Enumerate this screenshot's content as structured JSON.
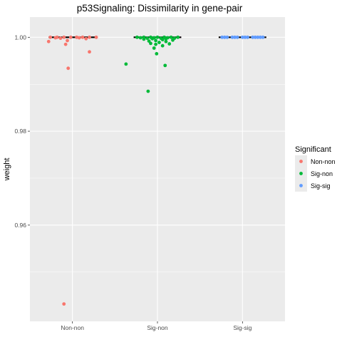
{
  "chart_data": {
    "type": "scatter",
    "title": "p53Signaling: Dissimilarity in gene-pair",
    "xlabel": "",
    "ylabel": "weight",
    "categories": [
      "Non-non",
      "Sig-non",
      "Sig-sig"
    ],
    "ylim": [
      0.9395,
      1.0043
    ],
    "yticks": [
      0.96,
      0.98,
      1.0
    ],
    "ytick_labels": [
      "0.96",
      "0.98",
      "1.00"
    ],
    "grid": true,
    "legend_position": "right",
    "legend": {
      "title": "Significant",
      "entries": [
        "Non-non",
        "Sig-non",
        "Sig-sig"
      ]
    },
    "medians": [
      1.0,
      1.0,
      1.0
    ],
    "series": [
      {
        "name": "Non-non",
        "color": "#F8766D",
        "points": [
          {
            "x": "Non-non",
            "y": 1.0,
            "jitter": -0.26
          },
          {
            "x": "Non-non",
            "y": 1.0,
            "jitter": -0.18
          },
          {
            "x": "Non-non",
            "y": 1.0,
            "jitter": -0.1
          },
          {
            "x": "Non-non",
            "y": 1.0,
            "jitter": -0.02
          },
          {
            "x": "Non-non",
            "y": 1.0,
            "jitter": 0.05
          },
          {
            "x": "Non-non",
            "y": 1.0,
            "jitter": 0.12
          },
          {
            "x": "Non-non",
            "y": 1.0,
            "jitter": 0.2
          },
          {
            "x": "Non-non",
            "y": 1.0,
            "jitter": 0.28
          },
          {
            "x": "Non-non",
            "y": 0.9999,
            "jitter": -0.2
          },
          {
            "x": "Non-non",
            "y": 0.9999,
            "jitter": 0.08
          },
          {
            "x": "Non-non",
            "y": 0.9998,
            "jitter": -0.14
          },
          {
            "x": "Non-non",
            "y": 0.9997,
            "jitter": 0.16
          },
          {
            "x": "Non-non",
            "y": 0.9993,
            "jitter": -0.06
          },
          {
            "x": "Non-non",
            "y": 0.9991,
            "jitter": -0.28
          },
          {
            "x": "Non-non",
            "y": 0.9985,
            "jitter": -0.08
          },
          {
            "x": "Non-non",
            "y": 0.9969,
            "jitter": 0.2
          },
          {
            "x": "Non-non",
            "y": 0.9934,
            "jitter": -0.05
          },
          {
            "x": "Non-non",
            "y": 0.9432,
            "jitter": -0.1
          }
        ]
      },
      {
        "name": "Sig-non",
        "color": "#00BA38",
        "points": [
          {
            "x": "Sig-non",
            "y": 1.0,
            "jitter": -0.24
          },
          {
            "x": "Sig-non",
            "y": 1.0,
            "jitter": -0.16
          },
          {
            "x": "Sig-non",
            "y": 1.0,
            "jitter": -0.08
          },
          {
            "x": "Sig-non",
            "y": 1.0,
            "jitter": 0.0
          },
          {
            "x": "Sig-non",
            "y": 1.0,
            "jitter": 0.08
          },
          {
            "x": "Sig-non",
            "y": 1.0,
            "jitter": 0.16
          },
          {
            "x": "Sig-non",
            "y": 1.0,
            "jitter": 0.24
          },
          {
            "x": "Sig-non",
            "y": 0.9999,
            "jitter": -0.2
          },
          {
            "x": "Sig-non",
            "y": 0.9999,
            "jitter": -0.04
          },
          {
            "x": "Sig-non",
            "y": 0.9999,
            "jitter": 0.12
          },
          {
            "x": "Sig-non",
            "y": 0.9998,
            "jitter": -0.12
          },
          {
            "x": "Sig-non",
            "y": 0.9998,
            "jitter": 0.04
          },
          {
            "x": "Sig-non",
            "y": 0.9998,
            "jitter": 0.2
          },
          {
            "x": "Sig-non",
            "y": 0.9997,
            "jitter": -0.06
          },
          {
            "x": "Sig-non",
            "y": 0.9997,
            "jitter": 0.1
          },
          {
            "x": "Sig-non",
            "y": 0.9996,
            "jitter": -0.16
          },
          {
            "x": "Sig-non",
            "y": 0.9995,
            "jitter": 0.06
          },
          {
            "x": "Sig-non",
            "y": 0.9994,
            "jitter": 0.18
          },
          {
            "x": "Sig-non",
            "y": 0.9993,
            "jitter": -0.02
          },
          {
            "x": "Sig-non",
            "y": 0.9992,
            "jitter": -0.1
          },
          {
            "x": "Sig-non",
            "y": 0.9991,
            "jitter": 0.1
          },
          {
            "x": "Sig-non",
            "y": 0.9989,
            "jitter": 0.02
          },
          {
            "x": "Sig-non",
            "y": 0.9987,
            "jitter": -0.08
          },
          {
            "x": "Sig-non",
            "y": 0.9986,
            "jitter": 0.14
          },
          {
            "x": "Sig-non",
            "y": 0.9985,
            "jitter": -0.02
          },
          {
            "x": "Sig-non",
            "y": 0.9982,
            "jitter": 0.06
          },
          {
            "x": "Sig-non",
            "y": 0.9977,
            "jitter": -0.04
          },
          {
            "x": "Sig-non",
            "y": 0.9965,
            "jitter": -0.01
          },
          {
            "x": "Sig-non",
            "y": 0.9943,
            "jitter": -0.37
          },
          {
            "x": "Sig-non",
            "y": 0.994,
            "jitter": 0.09
          },
          {
            "x": "Sig-non",
            "y": 0.9885,
            "jitter": -0.11
          }
        ]
      },
      {
        "name": "Sig-sig",
        "color": "#619CFF",
        "points": [
          {
            "x": "Sig-sig",
            "y": 1.0,
            "jitter": -0.24
          },
          {
            "x": "Sig-sig",
            "y": 1.0,
            "jitter": -0.18
          },
          {
            "x": "Sig-sig",
            "y": 1.0,
            "jitter": -0.12
          },
          {
            "x": "Sig-sig",
            "y": 1.0,
            "jitter": -0.06
          },
          {
            "x": "Sig-sig",
            "y": 1.0,
            "jitter": 0.0
          },
          {
            "x": "Sig-sig",
            "y": 1.0,
            "jitter": 0.06
          },
          {
            "x": "Sig-sig",
            "y": 1.0,
            "jitter": 0.12
          },
          {
            "x": "Sig-sig",
            "y": 1.0,
            "jitter": 0.18
          },
          {
            "x": "Sig-sig",
            "y": 1.0,
            "jitter": 0.24
          },
          {
            "x": "Sig-sig",
            "y": 1.0,
            "jitter": -0.21
          },
          {
            "x": "Sig-sig",
            "y": 1.0,
            "jitter": -0.09
          },
          {
            "x": "Sig-sig",
            "y": 1.0,
            "jitter": 0.03
          },
          {
            "x": "Sig-sig",
            "y": 1.0,
            "jitter": 0.15
          },
          {
            "x": "Sig-sig",
            "y": 1.0,
            "jitter": 0.21
          }
        ]
      }
    ]
  },
  "colors": {
    "panel_background": "#EBEBEB",
    "grid_major": "#FFFFFF",
    "median_line": "#000000"
  }
}
